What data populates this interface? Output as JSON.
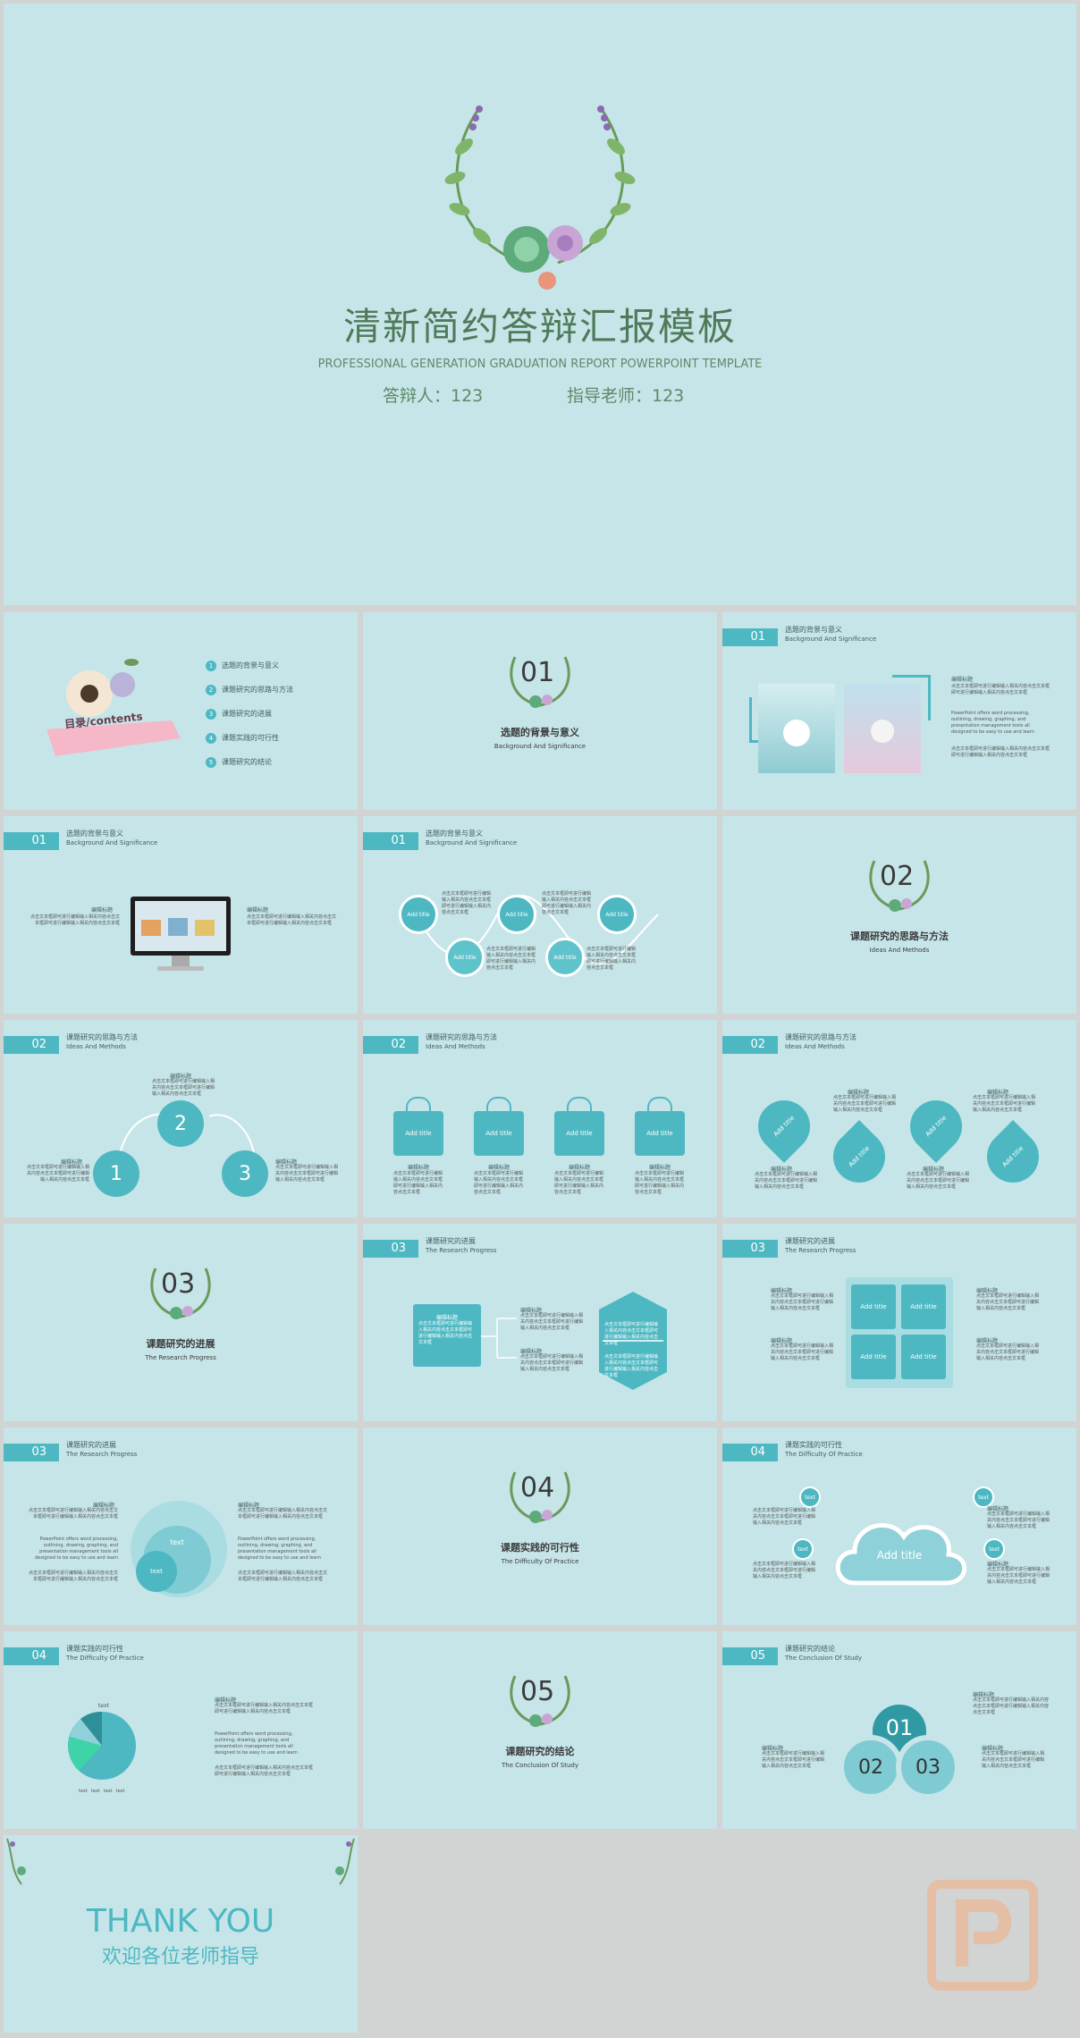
{
  "hero": {
    "title": "清新简约答辩汇报模板",
    "subtitle": "PROFESSIONAL GENERATION GRADUATION REPORT POWERPOINT TEMPLATE",
    "respondent": "答辩人：123",
    "advisor": "指导老师：123"
  },
  "toc": {
    "banner": "目录/contents",
    "items": [
      {
        "num": "1",
        "label": "选题的背景与意义"
      },
      {
        "num": "2",
        "label": "课题研究的思路与方法"
      },
      {
        "num": "3",
        "label": "课题研究的进展"
      },
      {
        "num": "4",
        "label": "课题实践的可行性"
      },
      {
        "num": "5",
        "label": "课题研究的结论"
      }
    ]
  },
  "sections": [
    {
      "num": "01",
      "title": "选题的背景与意义",
      "sub": "Background And Significance"
    },
    {
      "num": "02",
      "title": "课题研究的思路与方法",
      "sub": "Ideas And Methods"
    },
    {
      "num": "03",
      "title": "课题研究的进展",
      "sub": "The Research Progress"
    },
    {
      "num": "04",
      "title": "课题实践的可行性",
      "sub": "The Difficulty Of Practice"
    },
    {
      "num": "05",
      "title": "课题研究的结论",
      "sub": "The Conclusion Of Study"
    }
  ],
  "common": {
    "edit_title": "编辑标题",
    "add_title": "Add title",
    "text": "text",
    "body": "点击文本框即可进行编辑输入相关内容点击文本框即可进行编辑输入相关内容点击文本框",
    "en_body": "PowerPoint offers word processing, outlining, drawing, graphing, and presentation management tools all designed to be easy to use and learn"
  },
  "steps": {
    "one": "1",
    "two": "2",
    "three": "3"
  },
  "venn": {
    "one": "01",
    "two": "02",
    "three": "03"
  },
  "pie": {
    "top_label": "text",
    "legend": [
      "text",
      "text",
      "text",
      "text"
    ]
  },
  "thanks": {
    "en": "THANK YOU",
    "cn": "欢迎各位老师指导"
  },
  "colors": {
    "bg": "#c6e5e8",
    "accent": "#4db8c2",
    "dark": "#3f5d61"
  }
}
